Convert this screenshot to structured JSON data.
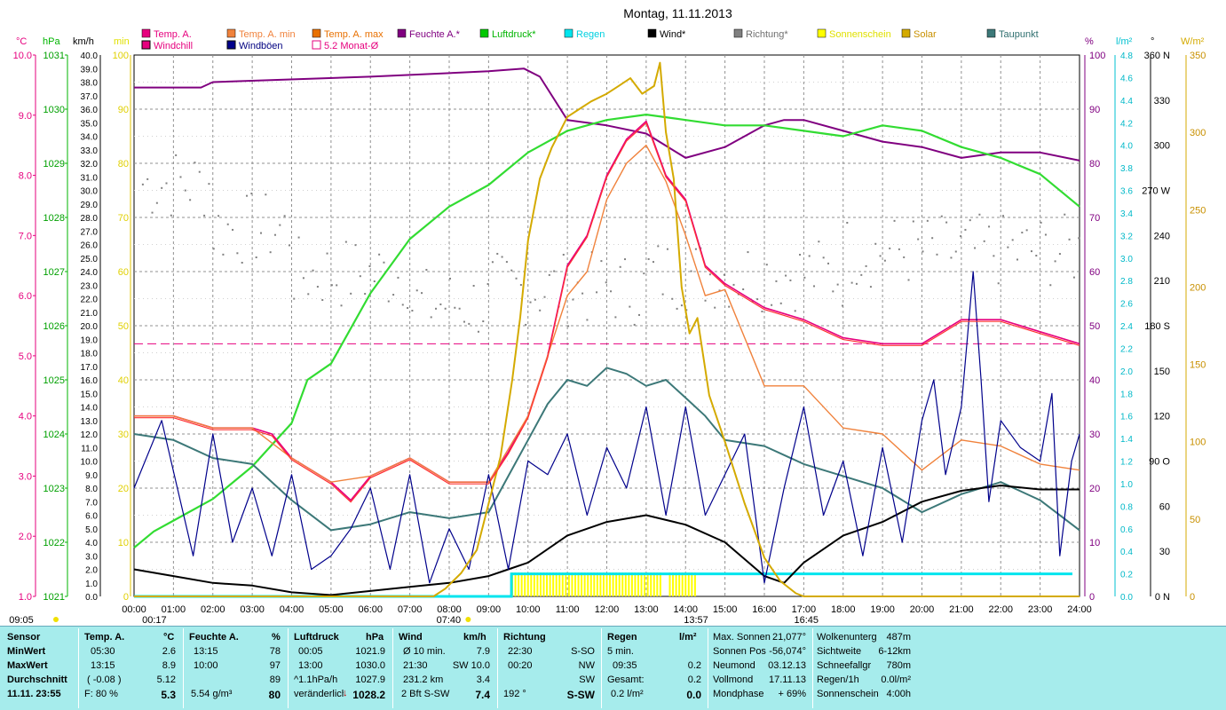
{
  "chart_data": {
    "type": "line",
    "title": "Montag, 11.11.2013",
    "legend_row1": [
      {
        "name": "Temp. A.",
        "color": "#e6007e",
        "text": "#e6007e"
      },
      {
        "name": "Temp. A. min",
        "color": "#f0823c",
        "text": "#f0823c"
      },
      {
        "name": "Temp. A. max",
        "color": "#e87000",
        "text": "#e87000"
      },
      {
        "name": "Feuchte A.*",
        "color": "#800080",
        "text": "#800080"
      },
      {
        "name": "Luftdruck*",
        "color": "#00c800",
        "text": "#00b400"
      },
      {
        "name": "Regen",
        "color": "#00e5ee",
        "text": "#00d0e0"
      },
      {
        "name": "Wind*",
        "color": "#000000",
        "text": "#000000"
      },
      {
        "name": "Richtung*",
        "color": "#808080",
        "text": "#707070"
      },
      {
        "name": "Sonnenschein",
        "color": "#ffff00",
        "text": "#e0e000"
      },
      {
        "name": "Solar",
        "color": "#d4aa00",
        "text": "#c89000"
      },
      {
        "name": "Taupunkt",
        "color": "#3c7878",
        "text": "#2f6f6f"
      }
    ],
    "legend_row2": [
      {
        "name": "Windchill",
        "color": "#e6007e",
        "text": "#e6007e"
      },
      {
        "name": "Windböen",
        "color": "#00008b",
        "text": "#000080"
      },
      {
        "name": "5.2 Monat-Ø",
        "color": "#ffffff",
        "text": "#e6007e",
        "outline": "#e6007e"
      }
    ],
    "axis_units_left": [
      "°C",
      "hPa",
      "km/h",
      "min"
    ],
    "axis_units_right": [
      "%",
      "l/m²",
      "°",
      "W/m²"
    ],
    "temp_ticks": [
      "10.0",
      "9.0",
      "8.0",
      "7.0",
      "6.0",
      "5.0",
      "4.0",
      "3.0",
      "2.0",
      "1.0"
    ],
    "hpa_ticks": [
      "1031",
      "1030",
      "1029",
      "1028",
      "1027",
      "1026",
      "1025",
      "1024",
      "1023",
      "1022",
      "1021"
    ],
    "kmh_max": 40,
    "min_ticks": [
      "100",
      "90",
      "80",
      "70",
      "60",
      "50",
      "40",
      "30",
      "20",
      "10",
      "0"
    ],
    "pct_ticks": [
      "100",
      "90",
      "80",
      "70",
      "60",
      "50",
      "40",
      "30",
      "20",
      "10",
      "0"
    ],
    "rain_max": 4.8,
    "deg_ticks": [
      "360 N",
      "330",
      "300",
      "270 W",
      "240",
      "210",
      "180 S",
      "150",
      "120",
      "90 O",
      "60",
      "30",
      "0 N"
    ],
    "wm2_ticks": [
      "350",
      "300",
      "250",
      "200",
      "150",
      "100",
      "50",
      "0"
    ],
    "x_ticks": [
      "00:00",
      "01:00",
      "02:00",
      "03:00",
      "04:00",
      "05:00",
      "06:00",
      "07:00",
      "08:00",
      "09:00",
      "10:00",
      "11:00",
      "12:00",
      "13:00",
      "14:00",
      "15:00",
      "16:00",
      "17:00",
      "18:00",
      "19:00",
      "20:00",
      "21:00",
      "22:00",
      "23:00",
      "24:00"
    ],
    "x_markers": [
      {
        "t": "09:05",
        "pos": 0.0
      },
      {
        "t": "00:17",
        "pos": 0.2
      },
      {
        "t": "07:40",
        "pos": 7.67
      },
      {
        "t": "13:57",
        "pos": 13.95
      },
      {
        "t": "16:45",
        "pos": 16.75
      }
    ],
    "monthly_avg_temp": 5.2,
    "series": [
      {
        "name": "Feuchte A.*",
        "unit": "%",
        "x": [
          0,
          1.7,
          2,
          6,
          9,
          9.9,
          10.3,
          11,
          12,
          13,
          14,
          15,
          16,
          16.5,
          17,
          18,
          19,
          20,
          21,
          22,
          23,
          24
        ],
        "y": [
          94,
          94,
          95,
          96,
          97,
          97.5,
          96,
          88,
          87,
          85.5,
          81,
          83,
          87,
          88,
          88,
          86,
          84,
          83,
          81,
          82,
          82,
          80.5
        ]
      },
      {
        "name": "Luftdruck*",
        "unit": "hPa",
        "x": [
          0,
          0.5,
          1,
          2,
          3,
          4,
          4.4,
          5,
          6,
          7,
          8,
          9,
          10,
          11,
          12,
          13,
          14,
          15,
          16,
          17,
          18,
          19,
          20,
          21,
          22,
          23,
          24
        ],
        "y": [
          1021.9,
          1022.2,
          1022.4,
          1022.8,
          1023.4,
          1024.2,
          1025.0,
          1025.3,
          1026.6,
          1027.6,
          1028.2,
          1028.6,
          1029.2,
          1029.6,
          1029.8,
          1029.9,
          1029.8,
          1029.7,
          1029.7,
          1029.6,
          1029.5,
          1029.7,
          1029.6,
          1029.3,
          1029.1,
          1028.8,
          1028.2
        ]
      },
      {
        "name": "Temp. A.",
        "unit": "°C",
        "x": [
          0,
          1,
          2,
          3,
          3.5,
          4,
          5,
          5.5,
          6,
          7,
          8,
          9,
          9.5,
          10,
          10.5,
          11,
          11.5,
          12,
          12.5,
          13,
          13.5,
          14,
          14.5,
          15,
          16,
          17,
          18,
          19,
          20,
          21,
          22,
          23,
          24
        ],
        "y": [
          4.0,
          4.0,
          3.8,
          3.8,
          3.7,
          3.3,
          2.9,
          2.6,
          3.0,
          3.3,
          2.9,
          2.9,
          3.4,
          4.0,
          5.0,
          6.5,
          7.0,
          8.0,
          8.6,
          8.9,
          8.0,
          7.6,
          6.5,
          6.2,
          5.8,
          5.6,
          5.3,
          5.2,
          5.2,
          5.6,
          5.6,
          5.4,
          5.2
        ]
      },
      {
        "name": "Temp. A. min",
        "unit": "°C",
        "x": [
          0,
          1,
          2,
          3,
          4,
          5,
          6,
          7,
          8,
          9,
          10,
          10.5,
          11,
          11.5,
          12,
          12.5,
          13,
          13.5,
          14,
          14.5,
          15,
          16,
          17,
          18,
          19,
          20,
          21,
          22,
          23,
          24
        ],
        "y": [
          4.0,
          4.0,
          3.8,
          3.8,
          3.3,
          2.9,
          3.0,
          3.3,
          2.9,
          2.9,
          4.0,
          5.0,
          6.0,
          6.4,
          7.6,
          8.2,
          8.5,
          7.9,
          7.0,
          6.0,
          6.1,
          4.5,
          4.5,
          3.8,
          3.7,
          3.1,
          3.6,
          3.5,
          3.2,
          3.1
        ]
      },
      {
        "name": "Taupunkt",
        "unit": "°C",
        "x": [
          0,
          1,
          2,
          3,
          4,
          5,
          6,
          7,
          8,
          9,
          9.5,
          10,
          10.5,
          11,
          11.5,
          12,
          12.5,
          13,
          13.5,
          14,
          14.5,
          15,
          16,
          17,
          18,
          19,
          20,
          21,
          22,
          23,
          24
        ],
        "y": [
          3.7,
          3.6,
          3.3,
          3.2,
          2.6,
          2.1,
          2.2,
          2.4,
          2.3,
          2.4,
          3.0,
          3.6,
          4.2,
          4.6,
          4.5,
          4.8,
          4.7,
          4.5,
          4.6,
          4.3,
          4.0,
          3.6,
          3.5,
          3.2,
          3.0,
          2.8,
          2.4,
          2.7,
          2.9,
          2.6,
          2.1
        ]
      },
      {
        "name": "Wind*",
        "unit": "km/h",
        "x": [
          0,
          1,
          2,
          3,
          4,
          5,
          6,
          7,
          8,
          9,
          9.5,
          10,
          11,
          12,
          13,
          14,
          15,
          16,
          16.5,
          17,
          18,
          19,
          20,
          21,
          22,
          23,
          24
        ],
        "y": [
          2.0,
          1.5,
          1.0,
          0.8,
          0.3,
          0.1,
          0.4,
          0.7,
          1.0,
          1.5,
          2.0,
          2.5,
          4.5,
          5.5,
          6.0,
          5.3,
          4.0,
          1.5,
          1.0,
          2.5,
          4.5,
          5.5,
          7.0,
          7.8,
          8.2,
          7.9,
          7.9
        ]
      },
      {
        "name": "Windböen",
        "unit": "km/h",
        "x": [
          0,
          0.7,
          1.1,
          1.5,
          2.0,
          2.5,
          3.0,
          3.5,
          4.0,
          4.5,
          5.0,
          5.5,
          6.0,
          6.5,
          7.0,
          7.5,
          8.0,
          8.5,
          9.0,
          9.5,
          10.0,
          10.5,
          11.0,
          11.5,
          12.0,
          12.5,
          13.0,
          13.5,
          14.0,
          14.5,
          15.0,
          15.5,
          16.0,
          16.5,
          17.0,
          17.5,
          18.0,
          18.5,
          19.0,
          19.5,
          20.0,
          20.3,
          20.6,
          21.0,
          21.3,
          21.5,
          21.7,
          22.0,
          22.5,
          23.0,
          23.3,
          23.5,
          23.8,
          24.0
        ],
        "y": [
          8,
          13,
          8,
          3,
          12,
          4,
          8,
          3,
          9,
          2,
          3,
          5,
          8,
          2,
          9,
          1,
          5,
          2,
          9,
          2,
          10,
          9,
          12,
          6,
          11,
          8,
          14,
          6,
          14,
          6,
          9,
          12,
          1,
          8,
          14,
          6,
          10,
          3,
          11,
          4,
          13,
          16,
          9,
          14,
          24,
          16,
          7,
          13,
          11,
          10,
          15,
          3,
          10,
          12
        ]
      },
      {
        "name": "Solar",
        "unit": "W/m²",
        "x": [
          0,
          7.6,
          7.9,
          8.3,
          8.7,
          9.0,
          9.3,
          9.6,
          9.8,
          10.0,
          10.3,
          10.6,
          11.0,
          11.3,
          11.6,
          12.0,
          12.3,
          12.6,
          12.9,
          13.2,
          13.35,
          13.5,
          13.7,
          13.9,
          14.1,
          14.3,
          14.6,
          15.0,
          15.5,
          16.0,
          16.4,
          16.8,
          17.0,
          24.0
        ],
        "y": [
          0,
          0,
          5,
          15,
          30,
          60,
          90,
          140,
          180,
          230,
          270,
          290,
          310,
          315,
          320,
          325,
          330,
          335,
          325,
          330,
          345,
          300,
          270,
          200,
          170,
          180,
          130,
          100,
          60,
          25,
          10,
          2,
          0,
          0
        ]
      }
    ]
  },
  "panel": {
    "headers": {
      "sensor": "Sensor",
      "temp": "Temp. A.",
      "temp_unit": "°C",
      "feuchte": "Feuchte A.",
      "feuchte_unit": "%",
      "luft": "Luftdruck",
      "luft_unit": "hPa",
      "wind": "Wind",
      "wind_unit": "km/h",
      "richtung": "Richtung",
      "regen": "Regen",
      "regen_unit": "l/m²"
    },
    "rows": {
      "minwert": "MinWert",
      "maxwert": "MaxWert",
      "durchschnitt": "Durchschnitt",
      "datum": "11.11. 23:55"
    },
    "temp": {
      "min_time": "05:30",
      "min_val": "2.6",
      "max_time": "13:15",
      "max_val": "8.9",
      "avg_trend": "( -0.08 )",
      "avg_val": "5.12",
      "cur_label": "F: 80 %",
      "cur_val": "5.3"
    },
    "feuchte": {
      "min_time": "13:15",
      "min_val": "78",
      "max_time": "10:00",
      "max_val": "97",
      "avg_val": "89",
      "abs": "5.54 g/m³",
      "cur_val": "80"
    },
    "luft": {
      "min_time": "00:05",
      "min_val": "1021.9",
      "max_time": "13:00",
      "max_val": "1030.0",
      "trend": "^1.1hPa/h",
      "trend_val": "1027.9",
      "state": "veränderlich",
      "cur_val": "1028.2"
    },
    "wind": {
      "r1a": "Ø 10 min.",
      "r1b": "7.9",
      "r2a": "21:30",
      "r2b": "SW 10.0",
      "r3a": "231.2 km",
      "r3b": "3.4",
      "r4a": "2 Bft S-SW",
      "r4b": "7.4"
    },
    "richtung": {
      "r1a": "22:30",
      "r1b": "S-SO",
      "r2a": "00:20",
      "r2b": "NW",
      "r3b": "SW",
      "r4a": "192 °",
      "r4b": "S-SW"
    },
    "regen": {
      "r1a": "5 min.",
      "r2a": "09:35",
      "r2b": "0.2",
      "r3a": "Gesamt:",
      "r3b": "0.2",
      "r4a": "0.2 l/m²",
      "r4b": "0.0"
    },
    "sun": [
      {
        "k": "Max. Sonnen",
        "v": "21,077°"
      },
      {
        "k": "Sonnen Pos",
        "v": "-56,074°"
      },
      {
        "k": "Neumond",
        "v": "03.12.13"
      },
      {
        "k": "Vollmond",
        "v": "17.11.13"
      },
      {
        "k": "Mondphase",
        "v": "+ 69%"
      }
    ],
    "extra": [
      {
        "k": "Wolkenunterg",
        "v": "487m"
      },
      {
        "k": "Sichtweite",
        "v": "6-12km"
      },
      {
        "k": "Schneefallgr",
        "v": "780m"
      },
      {
        "k": "Regen/1h",
        "v": "0.0l/m²"
      },
      {
        "k": "Sonnenschein",
        "v": "4:00h"
      }
    ]
  }
}
